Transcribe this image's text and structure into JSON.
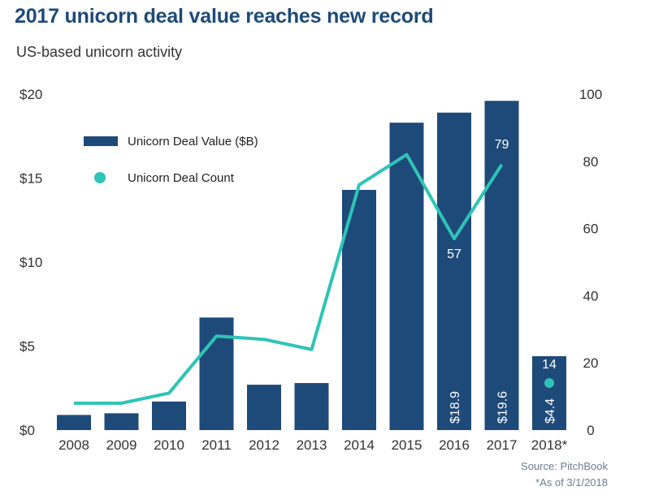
{
  "title": "2017 unicorn deal value reaches new record",
  "subtitle": "US-based unicorn activity",
  "source": "Source: PitchBook",
  "footnote": "*As of 3/1/2018",
  "colors": {
    "bar": "#1e4a7a",
    "line": "#2ec4b6",
    "title": "#1e4a7a"
  },
  "chart_data": {
    "type": "bar",
    "categories": [
      "2008",
      "2009",
      "2010",
      "2011",
      "2012",
      "2013",
      "2014",
      "2015",
      "2016",
      "2017",
      "2018*"
    ],
    "series": [
      {
        "name": "Unicorn Deal Value ($B)",
        "type": "bar",
        "axis": "left",
        "values": [
          0.9,
          1.0,
          1.7,
          6.7,
          2.7,
          2.8,
          14.3,
          18.3,
          18.9,
          19.6,
          4.4
        ]
      },
      {
        "name": "Unicorn Deal Count",
        "type": "line",
        "axis": "right",
        "values": [
          8,
          8,
          11,
          28,
          27,
          24,
          73,
          82,
          57,
          79,
          14
        ]
      }
    ],
    "left_axis": {
      "ticks": [
        "$0",
        "$5",
        "$10",
        "$15",
        "$20"
      ],
      "ylim": [
        0,
        20
      ]
    },
    "right_axis": {
      "ticks": [
        "0",
        "20",
        "40",
        "60",
        "80",
        "100"
      ],
      "ylim": [
        0,
        100
      ]
    },
    "bar_labels": [
      {
        "index": 8,
        "text": "$18.9"
      },
      {
        "index": 9,
        "text": "$19.6"
      },
      {
        "index": 10,
        "text": "$4.4"
      }
    ],
    "count_labels": [
      {
        "index": 8,
        "text": "57"
      },
      {
        "index": 9,
        "text": "79"
      },
      {
        "index": 10,
        "text": "14"
      }
    ],
    "legend_placement": "top-left",
    "grid": false
  }
}
